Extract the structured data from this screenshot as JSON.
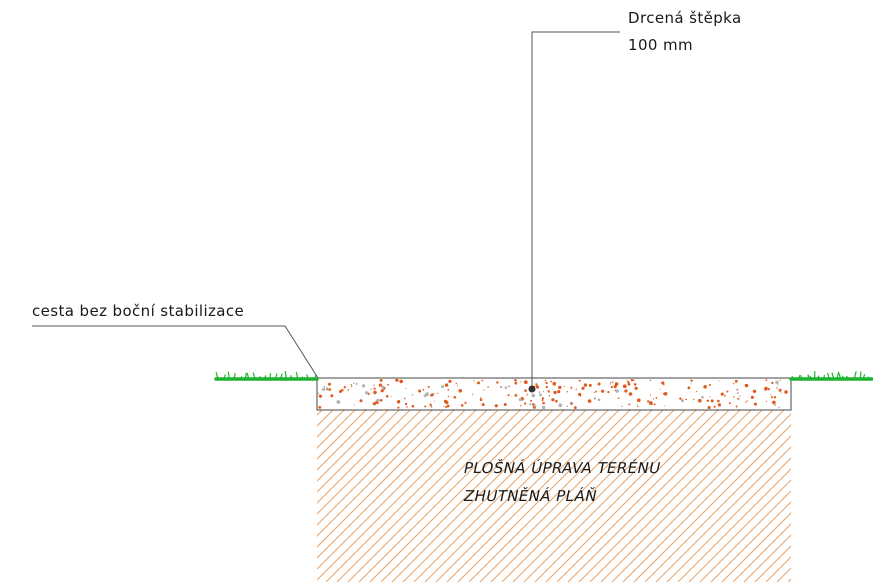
{
  "callouts": {
    "surface_material": "Drcená štěpka",
    "surface_thickness": "100 mm",
    "path_type": "cesta bez boční stabilizace"
  },
  "subgrade": {
    "line1": "PLOŠNÁ ÚPRAVA TERÉNU",
    "line2": "ZHUTNĚNÁ PLÁŇ"
  },
  "colors": {
    "grass": "#1db32f",
    "wood_chips": "#e05a1e",
    "hatch": "#e8a36a",
    "line": "#555555"
  }
}
